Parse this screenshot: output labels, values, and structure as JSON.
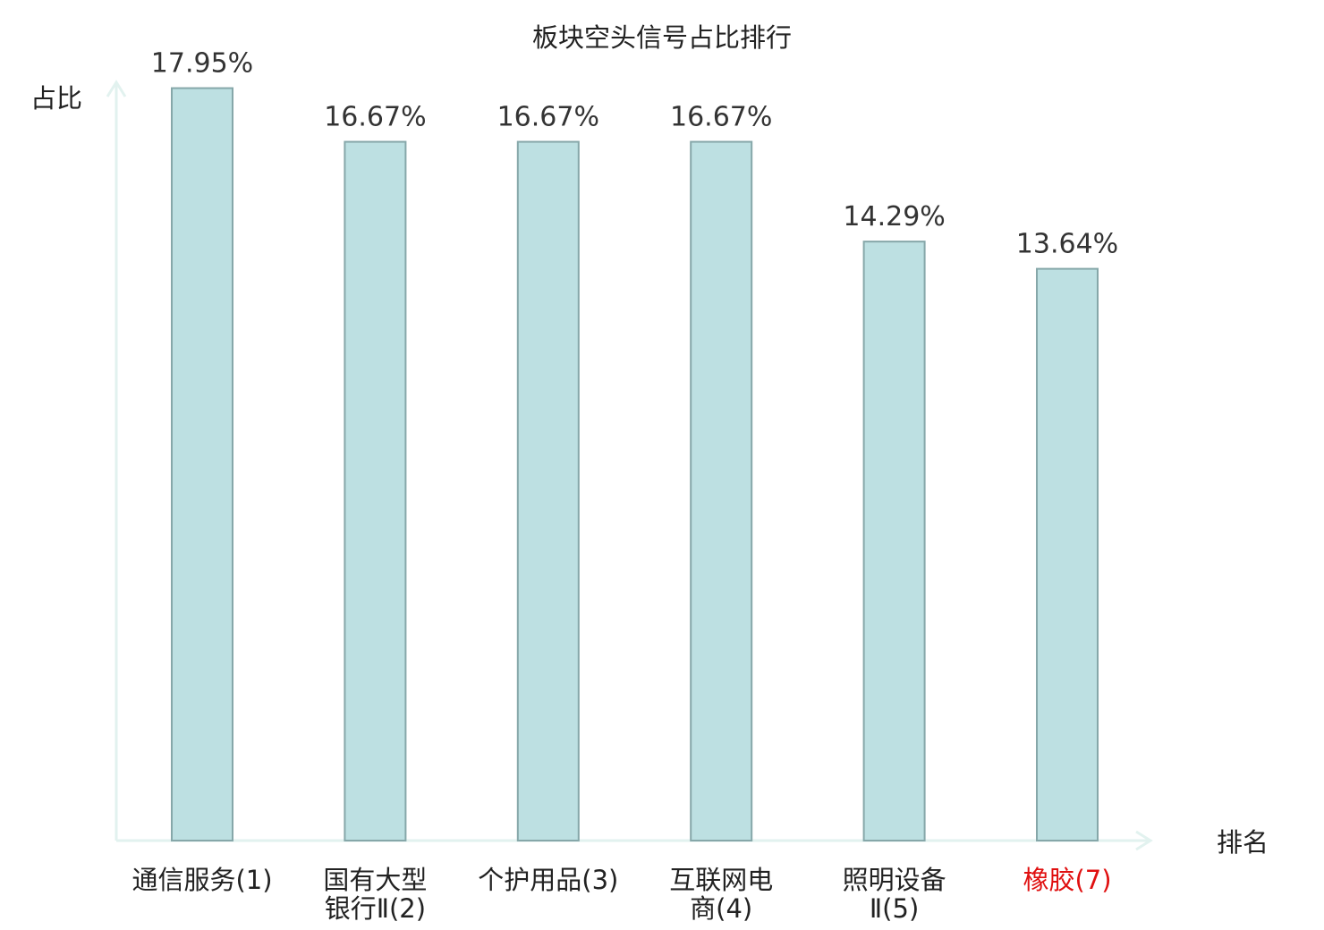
{
  "chart_data": {
    "type": "bar",
    "title": "板块空头信号占比排行",
    "xlabel": "排名",
    "ylabel": "占比",
    "ylim": [
      0,
      18
    ],
    "grid": false,
    "categories": [
      [
        "通信服务(1)"
      ],
      [
        "国有大型",
        "银行Ⅱ(2)"
      ],
      [
        "个护用品(3)"
      ],
      [
        "互联网电",
        "商(4)"
      ],
      [
        "照明设备",
        "Ⅱ(5)"
      ],
      [
        "橡胶(7)"
      ]
    ],
    "values": [
      17.95,
      16.67,
      16.67,
      16.67,
      14.29,
      13.64
    ],
    "value_labels": [
      "17.95%",
      "16.67%",
      "16.67%",
      "16.67%",
      "14.29%",
      "13.64%"
    ],
    "highlight_index": 5,
    "colors": {
      "bar_fill": "#bde0e2",
      "bar_stroke": "#86a7a9",
      "axis": "#e2f2ef",
      "highlight_text": "#e01010"
    }
  }
}
